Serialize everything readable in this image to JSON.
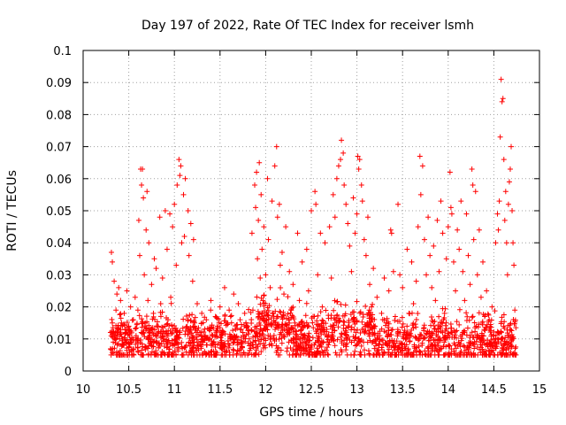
{
  "chart_data": {
    "type": "scatter",
    "title": "Day 197 of 2022, Rate Of TEC Index for receiver lsmh",
    "xlabel": "GPS time / hours",
    "ylabel": "ROTI / TECUs",
    "xlim": [
      10,
      15
    ],
    "ylim": [
      0,
      0.1
    ],
    "xticks": [
      "10",
      "10.5",
      "11",
      "11.5",
      "12",
      "12.5",
      "13",
      "13.5",
      "14",
      "14.5",
      "15"
    ],
    "yticks": [
      "0",
      "0.01",
      "0.02",
      "0.03",
      "0.04",
      "0.05",
      "0.06",
      "0.07",
      "0.08",
      "0.09",
      "0.1"
    ],
    "grid": true,
    "marker": "+",
    "color": "#ff0000",
    "series": [
      {
        "name": "ROTI",
        "points": [
          [
            10.3,
            0.012
          ],
          [
            10.31,
            0.037
          ],
          [
            10.32,
            0.034
          ],
          [
            10.32,
            0.015
          ],
          [
            10.33,
            0.009
          ],
          [
            10.34,
            0.028
          ],
          [
            10.35,
            0.011
          ],
          [
            10.36,
            0.019
          ],
          [
            10.37,
            0.024
          ],
          [
            10.38,
            0.013
          ],
          [
            10.39,
            0.026
          ],
          [
            10.4,
            0.01
          ],
          [
            10.41,
            0.022
          ],
          [
            10.42,
            0.015
          ],
          [
            10.43,
            0.008
          ],
          [
            10.45,
            0.018
          ],
          [
            10.47,
            0.012
          ],
          [
            10.48,
            0.025
          ],
          [
            10.5,
            0.014
          ],
          [
            10.52,
            0.02
          ],
          [
            10.53,
            0.009
          ],
          [
            10.55,
            0.016
          ],
          [
            10.57,
            0.023
          ],
          [
            10.58,
            0.011
          ],
          [
            10.6,
            0.019
          ],
          [
            10.61,
            0.047
          ],
          [
            10.62,
            0.036
          ],
          [
            10.63,
            0.063
          ],
          [
            10.64,
            0.058
          ],
          [
            10.65,
            0.063
          ],
          [
            10.66,
            0.054
          ],
          [
            10.67,
            0.03
          ],
          [
            10.68,
            0.015
          ],
          [
            10.69,
            0.044
          ],
          [
            10.7,
            0.056
          ],
          [
            10.71,
            0.022
          ],
          [
            10.72,
            0.04
          ],
          [
            10.73,
            0.012
          ],
          [
            10.75,
            0.027
          ],
          [
            10.77,
            0.018
          ],
          [
            10.78,
            0.035
          ],
          [
            10.8,
            0.032
          ],
          [
            10.82,
            0.014
          ],
          [
            10.84,
            0.048
          ],
          [
            10.85,
            0.021
          ],
          [
            10.87,
            0.029
          ],
          [
            10.88,
            0.01
          ],
          [
            10.9,
            0.05
          ],
          [
            10.92,
            0.038
          ],
          [
            10.93,
            0.016
          ],
          [
            10.95,
            0.049
          ],
          [
            10.96,
            0.023
          ],
          [
            10.98,
            0.045
          ],
          [
            11.0,
            0.052
          ],
          [
            11.02,
            0.033
          ],
          [
            11.03,
            0.058
          ],
          [
            11.05,
            0.066
          ],
          [
            11.06,
            0.061
          ],
          [
            11.07,
            0.064
          ],
          [
            11.08,
            0.04
          ],
          [
            11.1,
            0.055
          ],
          [
            11.11,
            0.042
          ],
          [
            11.12,
            0.06
          ],
          [
            11.13,
            0.008
          ],
          [
            11.15,
            0.05
          ],
          [
            11.16,
            0.036
          ],
          [
            11.18,
            0.046
          ],
          [
            11.2,
            0.028
          ],
          [
            11.21,
            0.041
          ],
          [
            11.22,
            0.015
          ],
          [
            11.25,
            0.021
          ],
          [
            11.28,
            0.012
          ],
          [
            11.3,
            0.018
          ],
          [
            11.33,
            0.01
          ],
          [
            11.35,
            0.016
          ],
          [
            11.38,
            0.013
          ],
          [
            11.4,
            0.022
          ],
          [
            11.42,
            0.011
          ],
          [
            11.45,
            0.017
          ],
          [
            11.47,
            0.014
          ],
          [
            11.5,
            0.02
          ],
          [
            11.52,
            0.012
          ],
          [
            11.55,
            0.026
          ],
          [
            11.57,
            0.015
          ],
          [
            11.6,
            0.019
          ],
          [
            11.62,
            0.01
          ],
          [
            11.65,
            0.024
          ],
          [
            11.67,
            0.013
          ],
          [
            11.7,
            0.021
          ],
          [
            11.72,
            0.016
          ],
          [
            11.75,
            0.012
          ],
          [
            11.77,
            0.018
          ],
          [
            11.8,
            0.014
          ],
          [
            11.82,
            0.01
          ],
          [
            11.85,
            0.043
          ],
          [
            11.86,
            0.019
          ],
          [
            11.88,
            0.058
          ],
          [
            11.89,
            0.051
          ],
          [
            11.9,
            0.062
          ],
          [
            11.91,
            0.035
          ],
          [
            11.92,
            0.047
          ],
          [
            11.93,
            0.065
          ],
          [
            11.94,
            0.029
          ],
          [
            11.95,
            0.055
          ],
          [
            11.96,
            0.038
          ],
          [
            11.97,
            0.022
          ],
          [
            11.98,
            0.045
          ],
          [
            12.0,
            0.03
          ],
          [
            12.02,
            0.06
          ],
          [
            12.03,
            0.041
          ],
          [
            12.05,
            0.026
          ],
          [
            12.07,
            0.053
          ],
          [
            12.08,
            0.018
          ],
          [
            12.1,
            0.064
          ],
          [
            12.12,
            0.07
          ],
          [
            12.13,
            0.048
          ],
          [
            12.15,
            0.052
          ],
          [
            12.16,
            0.033
          ],
          [
            12.18,
            0.037
          ],
          [
            12.2,
            0.024
          ],
          [
            12.22,
            0.045
          ],
          [
            12.24,
            0.012
          ],
          [
            12.26,
            0.031
          ],
          [
            12.28,
            0.019
          ],
          [
            12.3,
            0.027
          ],
          [
            12.32,
            0.015
          ],
          [
            12.35,
            0.043
          ],
          [
            12.37,
            0.022
          ],
          [
            12.4,
            0.034
          ],
          [
            12.42,
            0.011
          ],
          [
            12.45,
            0.038
          ],
          [
            12.47,
            0.025
          ],
          [
            12.5,
            0.05
          ],
          [
            12.52,
            0.017
          ],
          [
            12.54,
            0.056
          ],
          [
            12.55,
            0.052
          ],
          [
            12.57,
            0.03
          ],
          [
            12.6,
            0.043
          ],
          [
            12.62,
            0.02
          ],
          [
            12.65,
            0.04
          ],
          [
            12.67,
            0.013
          ],
          [
            12.7,
            0.045
          ],
          [
            12.72,
            0.029
          ],
          [
            12.74,
            0.055
          ],
          [
            12.76,
            0.048
          ],
          [
            12.78,
            0.06
          ],
          [
            12.8,
            0.064
          ],
          [
            12.82,
            0.066
          ],
          [
            12.83,
            0.072
          ],
          [
            12.85,
            0.068
          ],
          [
            12.86,
            0.058
          ],
          [
            12.88,
            0.052
          ],
          [
            12.9,
            0.046
          ],
          [
            12.92,
            0.039
          ],
          [
            12.94,
            0.031
          ],
          [
            12.96,
            0.054
          ],
          [
            12.98,
            0.043
          ],
          [
            13.0,
            0.049
          ],
          [
            13.01,
            0.067
          ],
          [
            13.02,
            0.063
          ],
          [
            13.03,
            0.066
          ],
          [
            13.05,
            0.058
          ],
          [
            13.06,
            0.053
          ],
          [
            13.08,
            0.041
          ],
          [
            13.1,
            0.036
          ],
          [
            13.12,
            0.048
          ],
          [
            13.14,
            0.027
          ],
          [
            13.16,
            0.02
          ],
          [
            13.18,
            0.032
          ],
          [
            13.2,
            0.014
          ],
          [
            13.22,
            0.023
          ],
          [
            13.25,
            0.011
          ],
          [
            13.27,
            0.018
          ],
          [
            13.3,
            0.029
          ],
          [
            13.32,
            0.015
          ],
          [
            13.35,
            0.025
          ],
          [
            13.37,
            0.044
          ],
          [
            13.38,
            0.043
          ],
          [
            13.4,
            0.031
          ],
          [
            13.42,
            0.017
          ],
          [
            13.45,
            0.052
          ],
          [
            13.47,
            0.03
          ],
          [
            13.5,
            0.026
          ],
          [
            13.52,
            0.012
          ],
          [
            13.55,
            0.038
          ],
          [
            13.57,
            0.018
          ],
          [
            13.6,
            0.034
          ],
          [
            13.62,
            0.021
          ],
          [
            13.65,
            0.028
          ],
          [
            13.67,
            0.045
          ],
          [
            13.69,
            0.067
          ],
          [
            13.7,
            0.055
          ],
          [
            13.72,
            0.064
          ],
          [
            13.74,
            0.041
          ],
          [
            13.76,
            0.03
          ],
          [
            13.78,
            0.048
          ],
          [
            13.8,
            0.036
          ],
          [
            13.82,
            0.026
          ],
          [
            13.84,
            0.039
          ],
          [
            13.86,
            0.022
          ],
          [
            13.88,
            0.047
          ],
          [
            13.9,
            0.031
          ],
          [
            13.92,
            0.053
          ],
          [
            13.94,
            0.043
          ],
          [
            13.96,
            0.018
          ],
          [
            13.98,
            0.035
          ],
          [
            14.0,
            0.045
          ],
          [
            14.02,
            0.062
          ],
          [
            14.03,
            0.051
          ],
          [
            14.04,
            0.049
          ],
          [
            14.06,
            0.034
          ],
          [
            14.08,
            0.025
          ],
          [
            14.1,
            0.044
          ],
          [
            14.12,
            0.038
          ],
          [
            14.14,
            0.053
          ],
          [
            14.16,
            0.031
          ],
          [
            14.18,
            0.022
          ],
          [
            14.2,
            0.049
          ],
          [
            14.22,
            0.036
          ],
          [
            14.24,
            0.027
          ],
          [
            14.26,
            0.063
          ],
          [
            14.27,
            0.058
          ],
          [
            14.28,
            0.041
          ],
          [
            14.3,
            0.056
          ],
          [
            14.32,
            0.03
          ],
          [
            14.34,
            0.044
          ],
          [
            14.36,
            0.023
          ],
          [
            14.38,
            0.034
          ],
          [
            14.4,
            0.017
          ],
          [
            14.42,
            0.025
          ],
          [
            14.45,
            0.013
          ],
          [
            14.48,
            0.02
          ],
          [
            14.5,
            0.011
          ],
          [
            14.52,
            0.04
          ],
          [
            14.54,
            0.049
          ],
          [
            14.55,
            0.044
          ],
          [
            14.56,
            0.053
          ],
          [
            14.57,
            0.073
          ],
          [
            14.58,
            0.091
          ],
          [
            14.59,
            0.084
          ],
          [
            14.6,
            0.085
          ],
          [
            14.61,
            0.066
          ],
          [
            14.62,
            0.047
          ],
          [
            14.63,
            0.056
          ],
          [
            14.64,
            0.04
          ],
          [
            14.65,
            0.03
          ],
          [
            14.66,
            0.052
          ],
          [
            14.67,
            0.059
          ],
          [
            14.68,
            0.063
          ],
          [
            14.69,
            0.07
          ],
          [
            14.7,
            0.05
          ],
          [
            14.71,
            0.04
          ],
          [
            14.72,
            0.033
          ],
          [
            14.73,
            0.019
          ]
        ]
      }
    ],
    "dense_band": {
      "x_range": [
        10.3,
        14.75
      ],
      "baseline_range": [
        0.005,
        0.028
      ],
      "count": 1800
    }
  }
}
